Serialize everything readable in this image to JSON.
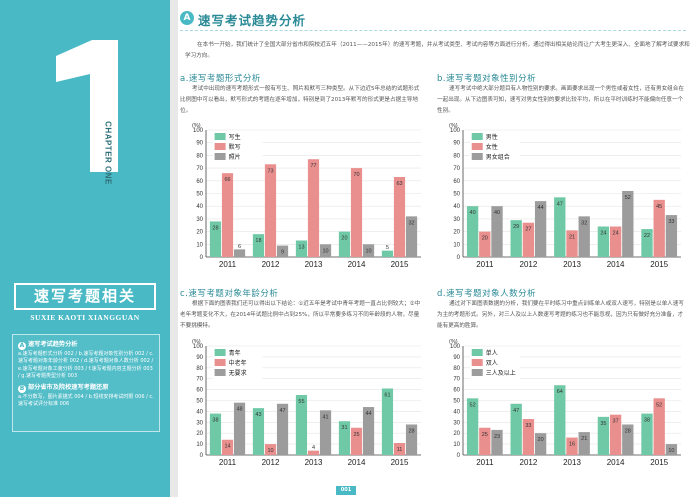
{
  "colors": {
    "accent": "#49b9c5",
    "teal_bar": "#6fc9a6",
    "red_bar": "#e98f8e",
    "gray_bar": "#9c9c9c",
    "title": "#2a8a96"
  },
  "sidebar": {
    "big_number": "1",
    "chapter_label": "CHAPTER ONE",
    "title": "速写考题相关",
    "pinyin": "SUXIE KAOTI XIANGGUAN",
    "toc": [
      {
        "badge": "A",
        "head": "速写考试趋势分析",
        "body": "a.速写考题形式分析 002 / b.速写考题对象性别分析 002 / c.速写考题对象年龄分析 002 / d.速写考题对象人数分析 002 / e.速写考题对象工装分析 003 / f.速写考题内容主题分析 003 / g.速写考题类型分析 003"
      },
      {
        "badge": "B",
        "head": "部分省市及院校速写考题还原",
        "body": "a.不分数写，图片素描式 004 / b.短线安排考试时限 006 / c.速写考试评分标准 006"
      }
    ]
  },
  "section": {
    "badge": "A",
    "title": "速写考试趋势分析",
    "intro": "在本书一开始，我们统计了全国大部分省市和院校近五年（2011——2015年）的速写考题，并从考试类型、考试内容等方面进行分析，通过得出相关结论而让广大考生更深入、全面地了解考试要求和学习方向。"
  },
  "panels": [
    {
      "title": "a.速写考题形式分析",
      "text": "考试中出现的速写考题形式一般有写生、照片和默写三种类型。从下边近5年总结的试题形式比例图中可以看出，默写形式的考题在逐年增加，特别是到了2013年默写的形式更是占据主导地位。"
    },
    {
      "title": "b.速写考题对象性别分析",
      "text": "速写考试中绝大部分题目有人物性别的要求。画面要求出现一个男性或者女性，还有男女组合在一起出现。从下边图表可知，速写对男女性别的要求比较平均，所以在平时训练时不能偏向任意一个性别。"
    },
    {
      "title": "c.速写考题对象年龄分析",
      "text": "根据下面的图表我们还可以得出以下结论：①近五年是考试中青年考题一直占比例较大；②中老年考题变化不大，在2014年试题比例中占到25%，所以平常要多练习不同年龄段的人物，尽量不要挑模特。"
    },
    {
      "title": "d.速写考题对象人数分析",
      "text": "通过对下面图表数据的分析，我们要在平时练习中重点训练单人或双人速写，特别是以单人速写为主的考题形式。另外，对三人及以上人数速写考题的练习也不能忽视，因为只有做好充分准备，才能有更高的胜算。"
    }
  ],
  "chart_data": [
    {
      "type": "bar",
      "ylabel": "(%)",
      "ylim": [
        0,
        100
      ],
      "categories": [
        "2011",
        "2012",
        "2013",
        "2014",
        "2015"
      ],
      "series": [
        {
          "name": "写生",
          "color": "#6fc9a6",
          "values": [
            28,
            18,
            13,
            20,
            5
          ]
        },
        {
          "name": "默写",
          "color": "#e98f8e",
          "values": [
            66,
            73,
            77,
            70,
            63
          ]
        },
        {
          "name": "照片",
          "color": "#9c9c9c",
          "values": [
            6,
            9,
            10,
            10,
            32
          ]
        }
      ]
    },
    {
      "type": "bar",
      "ylabel": "(%)",
      "ylim": [
        0,
        100
      ],
      "categories": [
        "2011",
        "2012",
        "2013",
        "2014",
        "2015"
      ],
      "series": [
        {
          "name": "男性",
          "color": "#6fc9a6",
          "values": [
            40,
            29,
            47,
            24,
            22
          ]
        },
        {
          "name": "女性",
          "color": "#e98f8e",
          "values": [
            20,
            27,
            21,
            24,
            45
          ]
        },
        {
          "name": "男女组合",
          "color": "#9c9c9c",
          "values": [
            40,
            44,
            32,
            52,
            33
          ]
        }
      ]
    },
    {
      "type": "bar",
      "ylabel": "(%)",
      "ylim": [
        0,
        100
      ],
      "categories": [
        "2011",
        "2012",
        "2013",
        "2014",
        "2015"
      ],
      "series": [
        {
          "name": "青年",
          "color": "#6fc9a6",
          "values": [
            38,
            43,
            55,
            31,
            61
          ]
        },
        {
          "name": "中老年",
          "color": "#e98f8e",
          "values": [
            14,
            10,
            4,
            25,
            11
          ]
        },
        {
          "name": "无要求",
          "color": "#9c9c9c",
          "values": [
            48,
            47,
            41,
            44,
            28
          ]
        }
      ]
    },
    {
      "type": "bar",
      "ylabel": "(%)",
      "ylim": [
        0,
        100
      ],
      "categories": [
        "2011",
        "2012",
        "2013",
        "2014",
        "2015"
      ],
      "series": [
        {
          "name": "单人",
          "color": "#6fc9a6",
          "values": [
            52,
            47,
            64,
            35,
            38
          ]
        },
        {
          "name": "双人",
          "color": "#e98f8e",
          "values": [
            25,
            33,
            16,
            37,
            52
          ]
        },
        {
          "name": "三人及以上",
          "color": "#9c9c9c",
          "values": [
            23,
            20,
            21,
            28,
            10
          ]
        }
      ]
    }
  ],
  "footer": {
    "page_number": "001"
  }
}
